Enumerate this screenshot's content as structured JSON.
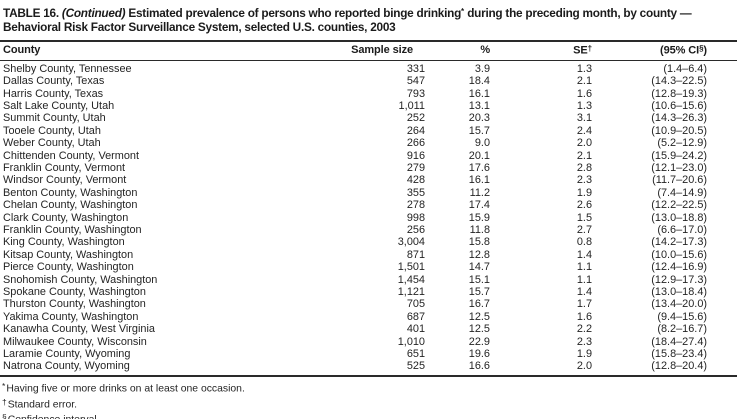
{
  "title": {
    "table_label": "TABLE 16.",
    "continued": "(Continued)",
    "line1_before_sup": "Estimated prevalence of persons who reported binge drinking",
    "sup_marker": "*",
    "line1_after_sup": " during the preceding month, by county —",
    "line2": "Behavioral Risk Factor Surveillance System, selected U.S. counties, 2003"
  },
  "table": {
    "columns": {
      "county": "County",
      "sample_size": "Sample size",
      "percent": "%",
      "se_label": "SE",
      "se_sup": "†",
      "ci_prefix": "(95% CI",
      "ci_sup": "§",
      "ci_suffix": ")"
    },
    "rows": [
      {
        "county": "Shelby County, Tennessee",
        "sample_size": "331",
        "percent": "3.9",
        "se": "1.3",
        "ci": "(1.4–6.4)"
      },
      {
        "county": "Dallas County, Texas",
        "sample_size": "547",
        "percent": "18.4",
        "se": "2.1",
        "ci": "(14.3–22.5)"
      },
      {
        "county": "Harris County, Texas",
        "sample_size": "793",
        "percent": "16.1",
        "se": "1.6",
        "ci": "(12.8–19.3)"
      },
      {
        "county": "Salt Lake County, Utah",
        "sample_size": "1,011",
        "percent": "13.1",
        "se": "1.3",
        "ci": "(10.6–15.6)"
      },
      {
        "county": "Summit County, Utah",
        "sample_size": "252",
        "percent": "20.3",
        "se": "3.1",
        "ci": "(14.3–26.3)"
      },
      {
        "county": "Tooele County, Utah",
        "sample_size": "264",
        "percent": "15.7",
        "se": "2.4",
        "ci": "(10.9–20.5)"
      },
      {
        "county": "Weber County, Utah",
        "sample_size": "266",
        "percent": "9.0",
        "se": "2.0",
        "ci": "(5.2–12.9)"
      },
      {
        "county": "Chittenden County, Vermont",
        "sample_size": "916",
        "percent": "20.1",
        "se": "2.1",
        "ci": "(15.9–24.2)"
      },
      {
        "county": "Franklin County, Vermont",
        "sample_size": "279",
        "percent": "17.6",
        "se": "2.8",
        "ci": "(12.1–23.0)"
      },
      {
        "county": "Windsor County, Vermont",
        "sample_size": "428",
        "percent": "16.1",
        "se": "2.3",
        "ci": "(11.7–20.6)"
      },
      {
        "county": "Benton County, Washington",
        "sample_size": "355",
        "percent": "11.2",
        "se": "1.9",
        "ci": "(7.4–14.9)"
      },
      {
        "county": "Chelan County, Washington",
        "sample_size": "278",
        "percent": "17.4",
        "se": "2.6",
        "ci": "(12.2–22.5)"
      },
      {
        "county": "Clark County, Washington",
        "sample_size": "998",
        "percent": "15.9",
        "se": "1.5",
        "ci": "(13.0–18.8)"
      },
      {
        "county": "Franklin County, Washington",
        "sample_size": "256",
        "percent": "11.8",
        "se": "2.7",
        "ci": "(6.6–17.0)"
      },
      {
        "county": "King County, Washington",
        "sample_size": "3,004",
        "percent": "15.8",
        "se": "0.8",
        "ci": "(14.2–17.3)"
      },
      {
        "county": "Kitsap County, Washington",
        "sample_size": "871",
        "percent": "12.8",
        "se": "1.4",
        "ci": "(10.0–15.6)"
      },
      {
        "county": "Pierce County, Washington",
        "sample_size": "1,501",
        "percent": "14.7",
        "se": "1.1",
        "ci": "(12.4–16.9)"
      },
      {
        "county": "Snohomish County, Washington",
        "sample_size": "1,454",
        "percent": "15.1",
        "se": "1.1",
        "ci": "(12.9–17.3)"
      },
      {
        "county": "Spokane County, Washington",
        "sample_size": "1,121",
        "percent": "15.7",
        "se": "1.4",
        "ci": "(13.0–18.4)"
      },
      {
        "county": "Thurston County, Washington",
        "sample_size": "705",
        "percent": "16.7",
        "se": "1.7",
        "ci": "(13.4–20.0)"
      },
      {
        "county": "Yakima County, Washington",
        "sample_size": "687",
        "percent": "12.5",
        "se": "1.6",
        "ci": "(9.4–15.6)"
      },
      {
        "county": "Kanawha County, West Virginia",
        "sample_size": "401",
        "percent": "12.5",
        "se": "2.2",
        "ci": "(8.2–16.7)"
      },
      {
        "county": "Milwaukee County, Wisconsin",
        "sample_size": "1,010",
        "percent": "22.9",
        "se": "2.3",
        "ci": "(18.4–27.4)"
      },
      {
        "county": "Laramie County, Wyoming",
        "sample_size": "651",
        "percent": "19.6",
        "se": "1.9",
        "ci": "(15.8–23.4)"
      },
      {
        "county": "Natrona County, Wyoming",
        "sample_size": "525",
        "percent": "16.6",
        "se": "2.0",
        "ci": "(12.8–20.4)"
      }
    ]
  },
  "footnotes": [
    {
      "marker": "*",
      "text": "Having five or more drinks on at least one occasion."
    },
    {
      "marker": "†",
      "text": "Standard error."
    },
    {
      "marker": "§",
      "text": "Confidence interval."
    }
  ]
}
